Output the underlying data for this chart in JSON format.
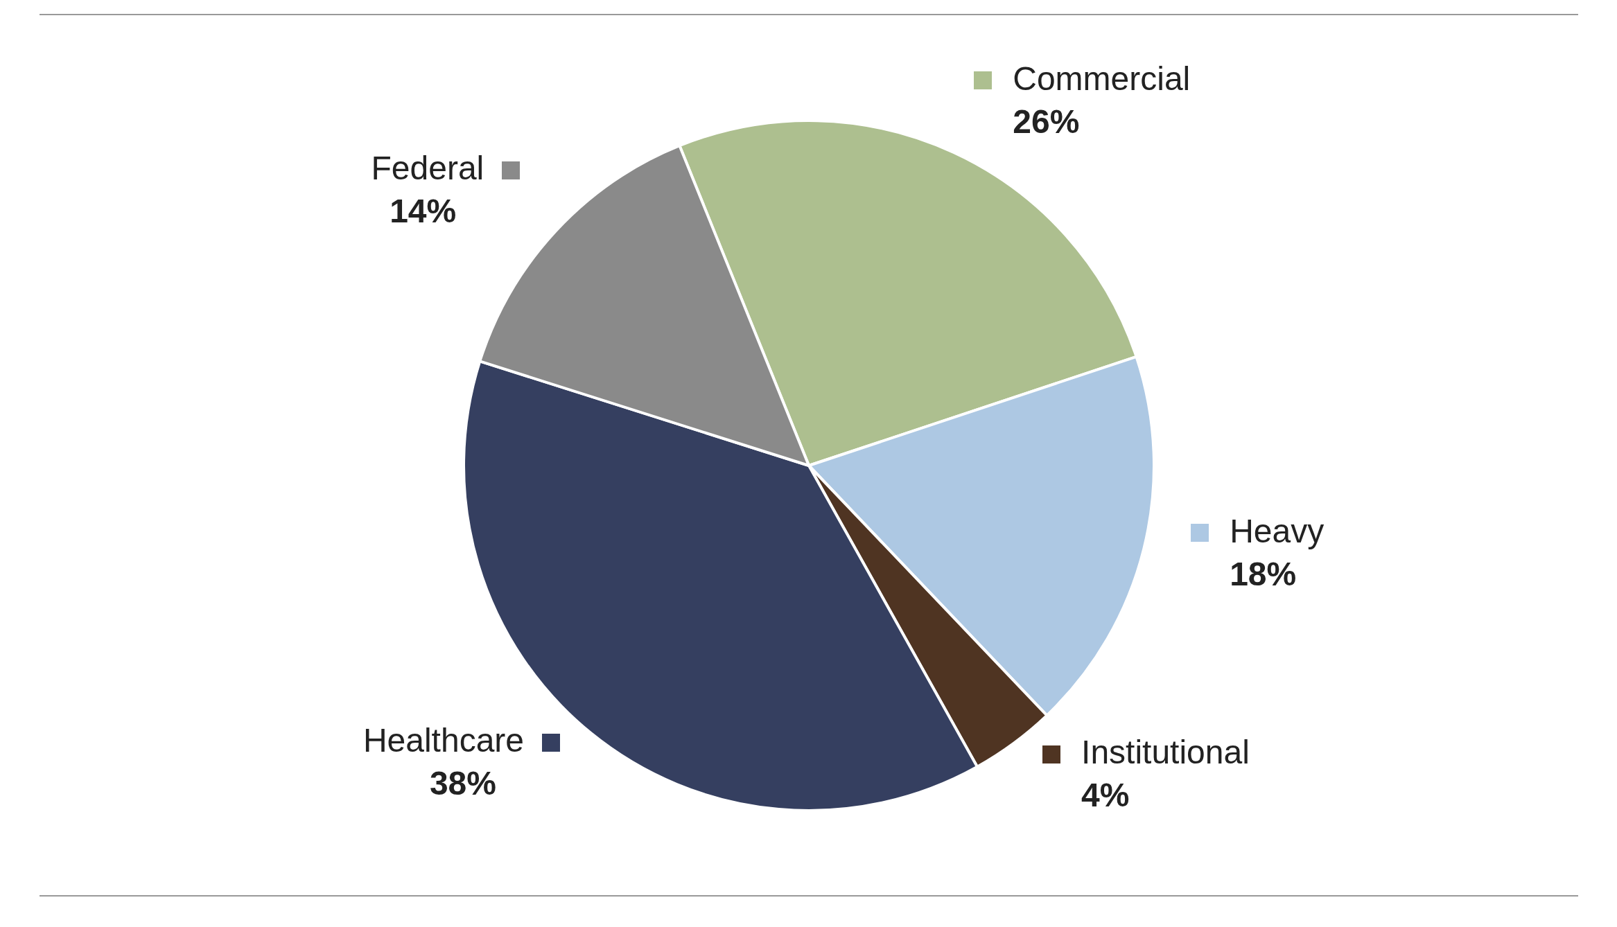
{
  "chart_data": {
    "type": "pie",
    "categories": [
      "Commercial",
      "Heavy",
      "Institutional",
      "Healthcare",
      "Federal"
    ],
    "values": [
      26,
      18,
      4,
      38,
      14
    ],
    "colors": [
      "#adbf8f",
      "#adc8e3",
      "#4f3422",
      "#353f60",
      "#8a8a8a"
    ],
    "value_labels": [
      "26%",
      "18%",
      "4%",
      "38%",
      "14%"
    ],
    "legend": "right"
  }
}
